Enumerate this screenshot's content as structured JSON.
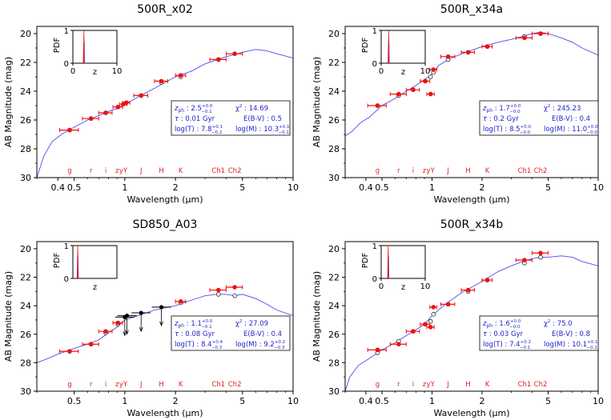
{
  "colors": {
    "model": "#4a4af0",
    "observed": "#ee1111",
    "text_box": "#2222cc",
    "band_label": "#dd2222",
    "axis": "#000000"
  },
  "chart_data": [
    {
      "type": "scatter",
      "title": "500R_x02",
      "xlabel": "Wavelength (μm)",
      "ylabel": "AB Magnitude (mag)",
      "xscale": "log",
      "xlim": [
        0.3,
        10
      ],
      "ylim": [
        30,
        19.5
      ],
      "xticks": [
        "0.4",
        "0.5",
        "1",
        "2",
        "5",
        "10"
      ],
      "yticks": [
        "20",
        "22",
        "24",
        "26",
        "28",
        "30"
      ],
      "bands": [
        "g",
        "r",
        "i",
        "z",
        "yY",
        "J",
        "H",
        "K",
        "Ch1",
        "Ch2"
      ],
      "inset": {
        "ylabel": "PDF",
        "xlabel": "z",
        "xlim": [
          0,
          10
        ],
        "ylim": [
          0,
          1
        ],
        "xticks": [
          "0",
          "10"
        ],
        "yticks": [
          "0",
          "1"
        ],
        "peak": 2.5,
        "width": 0.15
      },
      "text": {
        "zph": "2.5",
        "zph_sup": "+0.0",
        "zph_sub": "−0.1",
        "chi2": "14.69",
        "tau": "0.01",
        "tau_unit": "Gyr",
        "ebv": "0.5",
        "logT": "7.8",
        "logT_sup": "+0.1",
        "logT_sub": "−0.2",
        "logM": "10.3",
        "logM_sup": "+0.1",
        "logM_sub": "−0.1"
      },
      "model": [
        [
          0.3,
          30
        ],
        [
          0.33,
          28.5
        ],
        [
          0.37,
          27.5
        ],
        [
          0.42,
          27.0
        ],
        [
          0.5,
          26.5
        ],
        [
          0.6,
          26.0
        ],
        [
          0.7,
          25.7
        ],
        [
          0.8,
          25.4
        ],
        [
          0.9,
          25.2
        ],
        [
          1.0,
          24.9
        ],
        [
          1.2,
          24.4
        ],
        [
          1.5,
          23.8
        ],
        [
          2.0,
          23.0
        ],
        [
          2.5,
          22.6
        ],
        [
          3.0,
          22.1
        ],
        [
          4.0,
          21.6
        ],
        [
          5.0,
          21.3
        ],
        [
          6.0,
          21.1
        ],
        [
          7.0,
          21.2
        ],
        [
          8.0,
          21.4
        ],
        [
          10.0,
          21.7
        ]
      ],
      "photometry": [
        {
          "x": 0.47,
          "y": 26.7,
          "xerr": 0.06,
          "yerr": 0.1,
          "model": 26.7
        },
        {
          "x": 0.63,
          "y": 25.9,
          "xerr": 0.07,
          "yerr": 0.1,
          "model": 25.9
        },
        {
          "x": 0.77,
          "y": 25.5,
          "xerr": 0.07,
          "yerr": 0.1,
          "model": 25.5
        },
        {
          "x": 0.91,
          "y": 25.1,
          "xerr": 0.06,
          "yerr": 0.1,
          "model": 25.1
        },
        {
          "x": 0.98,
          "y": 24.9,
          "xerr": 0.05,
          "yerr": 0.1,
          "model": 24.9
        },
        {
          "x": 1.02,
          "y": 24.8,
          "xerr": 0.05,
          "yerr": 0.1,
          "model": 24.8
        },
        {
          "x": 1.25,
          "y": 24.3,
          "xerr": 0.12,
          "yerr": 0.1,
          "model": 24.3
        },
        {
          "x": 1.65,
          "y": 23.3,
          "xerr": 0.15,
          "yerr": 0.1,
          "model": 23.4
        },
        {
          "x": 2.15,
          "y": 22.9,
          "xerr": 0.15,
          "yerr": 0.1,
          "model": 23.0
        },
        {
          "x": 3.6,
          "y": 21.8,
          "xerr": 0.4,
          "yerr": 0.1,
          "model": 21.8
        },
        {
          "x": 4.5,
          "y": 21.4,
          "xerr": 0.5,
          "yerr": 0.1,
          "model": 21.4
        }
      ],
      "upper_limits": []
    },
    {
      "type": "scatter",
      "title": "500R_x34a",
      "xlabel": "Wavelength (μm)",
      "ylabel": "AB Magnitude (mag)",
      "xscale": "log",
      "xlim": [
        0.3,
        10
      ],
      "ylim": [
        30,
        19.5
      ],
      "xticks": [
        "0.4",
        "0.5",
        "1",
        "2",
        "5",
        "10"
      ],
      "yticks": [
        "20",
        "22",
        "24",
        "26",
        "28",
        "30"
      ],
      "bands": [
        "g",
        "r",
        "i",
        "z",
        "yY",
        "J",
        "H",
        "K",
        "Ch1",
        "Ch2"
      ],
      "inset": {
        "ylabel": "PDF",
        "xlabel": "z",
        "xlim": [
          0,
          10
        ],
        "ylim": [
          0,
          1
        ],
        "xticks": [
          "0",
          "10"
        ],
        "yticks": [
          "0",
          "1"
        ],
        "peak": 1.7,
        "width": 0.1
      },
      "text": {
        "zph": "1.7",
        "zph_sup": "+0.0",
        "zph_sub": "−0.0",
        "chi2": "245.23",
        "tau": "0.2",
        "tau_unit": "Gyr",
        "ebv": "0.4",
        "logT": "8.5",
        "logT_sup": "+0.0",
        "logT_sub": "−0.0",
        "logM": "11.0",
        "logM_sup": "+0.0",
        "logM_sub": "−0.0"
      },
      "model": [
        [
          0.3,
          27.1
        ],
        [
          0.33,
          26.8
        ],
        [
          0.37,
          26.2
        ],
        [
          0.42,
          25.8
        ],
        [
          0.5,
          25.0
        ],
        [
          0.6,
          24.5
        ],
        [
          0.7,
          24.0
        ],
        [
          0.8,
          23.6
        ],
        [
          0.9,
          23.2
        ],
        [
          1.0,
          22.8
        ],
        [
          1.1,
          22.2
        ],
        [
          1.3,
          21.7
        ],
        [
          1.6,
          21.3
        ],
        [
          2.0,
          20.9
        ],
        [
          2.5,
          20.6
        ],
        [
          3.0,
          20.4
        ],
        [
          3.5,
          20.2
        ],
        [
          4.0,
          20.0
        ],
        [
          4.5,
          19.9
        ],
        [
          5.0,
          20.0
        ],
        [
          6.0,
          20.3
        ],
        [
          7.0,
          20.6
        ],
        [
          8.0,
          21.0
        ],
        [
          10.0,
          21.5
        ]
      ],
      "photometry": [
        {
          "x": 0.47,
          "y": 25.0,
          "xerr": 0.06,
          "yerr": 0.1,
          "model": 25.0
        },
        {
          "x": 0.63,
          "y": 24.2,
          "xerr": 0.07,
          "yerr": 0.1,
          "model": 24.3
        },
        {
          "x": 0.77,
          "y": 23.9,
          "xerr": 0.07,
          "yerr": 0.1,
          "model": 23.9
        },
        {
          "x": 0.91,
          "y": 23.3,
          "xerr": 0.06,
          "yerr": 0.1,
          "model": 23.3
        },
        {
          "x": 0.98,
          "y": 24.2,
          "xerr": 0.05,
          "yerr": 0.1,
          "model": 23.0
        },
        {
          "x": 1.02,
          "y": 22.5,
          "xerr": 0.05,
          "yerr": 0.1,
          "model": 22.7
        },
        {
          "x": 1.25,
          "y": 21.6,
          "xerr": 0.12,
          "yerr": 0.1,
          "model": 21.8
        },
        {
          "x": 1.65,
          "y": 21.3,
          "xerr": 0.15,
          "yerr": 0.1,
          "model": 21.3
        },
        {
          "x": 2.15,
          "y": 20.9,
          "xerr": 0.15,
          "yerr": 0.1,
          "model": 20.9
        },
        {
          "x": 3.6,
          "y": 20.3,
          "xerr": 0.4,
          "yerr": 0.1,
          "model": 20.2
        },
        {
          "x": 4.5,
          "y": 20.0,
          "xerr": 0.5,
          "yerr": 0.1,
          "model": 20.0
        }
      ],
      "upper_limits": []
    },
    {
      "type": "scatter",
      "title": "SD850_A03",
      "xlabel": "Wavelength (μm)",
      "ylabel": "AB Magnitude (mag)",
      "xscale": "log",
      "xlim": [
        0.3,
        10
      ],
      "ylim": [
        30,
        19.5
      ],
      "xticks": [
        "0.5",
        "1",
        "2",
        "5",
        "10"
      ],
      "yticks": [
        "20",
        "22",
        "24",
        "26",
        "28",
        "30"
      ],
      "bands": [
        "g",
        "r",
        "i",
        "z",
        "yY",
        "J",
        "H",
        "K",
        "Ch1",
        "Ch2"
      ],
      "inset": {
        "ylabel": "PDF",
        "xlabel": "z",
        "xlim": [
          0,
          10
        ],
        "ylim": [
          0,
          1
        ],
        "xticks": [],
        "yticks": [
          "0",
          "1"
        ],
        "peak": 1.1,
        "width": 0.12
      },
      "text": {
        "zph": "1.1",
        "zph_sup": "+0.0",
        "zph_sub": "−0.1",
        "chi2": "27.09",
        "tau": "0.08",
        "tau_unit": "Gyr",
        "ebv": "0.4",
        "logT": "8.4",
        "logT_sup": "+0.4",
        "logT_sub": "−0.3",
        "logM": "9.2",
        "logM_sup": "+0.2",
        "logM_sub": "−0.3"
      },
      "model": [
        [
          0.3,
          28.0
        ],
        [
          0.35,
          27.7
        ],
        [
          0.4,
          27.4
        ],
        [
          0.5,
          27.0
        ],
        [
          0.6,
          26.7
        ],
        [
          0.7,
          26.4
        ],
        [
          0.8,
          25.9
        ],
        [
          0.9,
          25.5
        ],
        [
          1.0,
          25.0
        ],
        [
          1.2,
          24.7
        ],
        [
          1.5,
          24.3
        ],
        [
          2.0,
          24.0
        ],
        [
          2.5,
          23.6
        ],
        [
          3.0,
          23.3
        ],
        [
          3.5,
          23.2
        ],
        [
          4.0,
          23.2
        ],
        [
          4.5,
          23.3
        ],
        [
          5.0,
          23.2
        ],
        [
          6.0,
          23.5
        ],
        [
          7.0,
          23.9
        ],
        [
          8.0,
          24.3
        ],
        [
          10.0,
          24.7
        ]
      ],
      "photometry": [
        {
          "x": 0.47,
          "y": 27.2,
          "xerr": 0.06,
          "yerr": 0.1,
          "model": 27.2
        },
        {
          "x": 0.63,
          "y": 26.7,
          "xerr": 0.07,
          "yerr": 0.1,
          "model": 26.7
        },
        {
          "x": 0.77,
          "y": 25.8,
          "xerr": 0.07,
          "yerr": 0.1,
          "model": 25.9
        },
        {
          "x": 0.91,
          "y": 25.2,
          "xerr": 0.06,
          "yerr": 0.1,
          "model": 25.3
        },
        {
          "x": 2.15,
          "y": 23.7,
          "xerr": 0.15,
          "yerr": 0.1,
          "model": 23.8
        },
        {
          "x": 3.6,
          "y": 22.9,
          "xerr": 0.4,
          "yerr": 0.1,
          "model": 23.2
        },
        {
          "x": 4.5,
          "y": 22.7,
          "xerr": 0.5,
          "yerr": 0.1,
          "model": 23.3
        }
      ],
      "upper_limits": [
        {
          "x": 1.0,
          "y": 24.8
        },
        {
          "x": 1.03,
          "y": 24.7
        },
        {
          "x": 1.25,
          "y": 24.5
        },
        {
          "x": 1.65,
          "y": 24.1
        }
      ]
    },
    {
      "type": "scatter",
      "title": "500R_x34b",
      "xlabel": "Wavelength (μm)",
      "ylabel": "AB Magnitude (mag)",
      "xscale": "log",
      "xlim": [
        0.3,
        10
      ],
      "ylim": [
        30,
        19.5
      ],
      "xticks": [
        "0.4",
        "0.5",
        "1",
        "2",
        "5",
        "10"
      ],
      "yticks": [
        "20",
        "22",
        "24",
        "26",
        "28",
        "30"
      ],
      "bands": [
        "g",
        "r",
        "i",
        "z",
        "yY",
        "J",
        "H",
        "K",
        "Ch1",
        "Ch2"
      ],
      "inset": {
        "ylabel": "PDF",
        "xlabel": "z",
        "xlim": [
          0,
          10
        ],
        "ylim": [
          0,
          1
        ],
        "xticks": [
          "0",
          "10"
        ],
        "yticks": [
          "0",
          "1"
        ],
        "peak": 1.6,
        "width": 0.1
      },
      "text": {
        "zph": "1.6",
        "zph_sup": "+0.0",
        "zph_sub": "−0.0",
        "chi2": "75.0",
        "tau": "0.03",
        "tau_unit": "Gyr",
        "ebv": "0.8",
        "logT": "7.4",
        "logT_sup": "+0.2",
        "logT_sub": "−0.1",
        "logM": "10.1",
        "logM_sup": "+0.1",
        "logM_sub": "−0.1"
      },
      "model": [
        [
          0.3,
          30
        ],
        [
          0.32,
          29.0
        ],
        [
          0.36,
          28.2
        ],
        [
          0.42,
          27.7
        ],
        [
          0.5,
          27.1
        ],
        [
          0.6,
          26.6
        ],
        [
          0.7,
          26.1
        ],
        [
          0.8,
          25.7
        ],
        [
          0.9,
          25.3
        ],
        [
          1.0,
          24.7
        ],
        [
          1.2,
          23.9
        ],
        [
          1.5,
          23.1
        ],
        [
          2.0,
          22.3
        ],
        [
          2.5,
          21.6
        ],
        [
          3.0,
          21.2
        ],
        [
          3.5,
          20.9
        ],
        [
          4.0,
          20.7
        ],
        [
          4.5,
          20.6
        ],
        [
          5.0,
          20.6
        ],
        [
          6.0,
          20.5
        ],
        [
          7.0,
          20.6
        ],
        [
          8.0,
          20.9
        ],
        [
          10.0,
          21.2
        ]
      ],
      "photometry": [
        {
          "x": 0.47,
          "y": 27.1,
          "xerr": 0.06,
          "yerr": 0.1,
          "model": 27.3
        },
        {
          "x": 0.63,
          "y": 26.7,
          "xerr": 0.07,
          "yerr": 0.1,
          "model": 26.5
        },
        {
          "x": 0.77,
          "y": 25.8,
          "xerr": 0.07,
          "yerr": 0.1,
          "model": 25.8
        },
        {
          "x": 0.91,
          "y": 25.3,
          "xerr": 0.06,
          "yerr": 0.1,
          "model": 25.3
        },
        {
          "x": 0.98,
          "y": 25.5,
          "xerr": 0.05,
          "yerr": 0.1,
          "model": 25.1
        },
        {
          "x": 1.02,
          "y": 24.1,
          "xerr": 0.05,
          "yerr": 0.1,
          "model": 24.6
        },
        {
          "x": 1.25,
          "y": 23.9,
          "xerr": 0.12,
          "yerr": 0.1,
          "model": 23.9
        },
        {
          "x": 1.65,
          "y": 22.9,
          "xerr": 0.15,
          "yerr": 0.1,
          "model": 23.0
        },
        {
          "x": 2.15,
          "y": 22.2,
          "xerr": 0.15,
          "yerr": 0.1,
          "model": 22.2
        },
        {
          "x": 3.6,
          "y": 20.8,
          "xerr": 0.4,
          "yerr": 0.1,
          "model": 21.0
        },
        {
          "x": 4.5,
          "y": 20.3,
          "xerr": 0.5,
          "yerr": 0.1,
          "model": 20.6
        }
      ],
      "upper_limits": []
    }
  ]
}
